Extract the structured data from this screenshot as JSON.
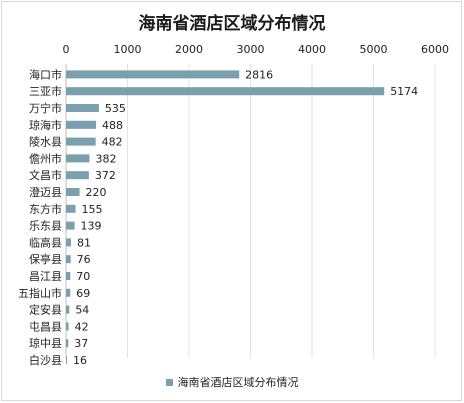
{
  "chart_data": {
    "type": "bar",
    "orientation": "horizontal",
    "title": "海南省酒店区域分布情况",
    "xlim": [
      0,
      6000
    ],
    "ticks": [
      0,
      1000,
      2000,
      3000,
      4000,
      5000,
      6000
    ],
    "x_axis_position": "top",
    "grid": true,
    "legend_placement": "bottom",
    "bar_color": "#7a9fae",
    "categories": [
      "海口市",
      "三亚市",
      "万宁市",
      "琼海市",
      "陵水县",
      "儋州市",
      "文昌市",
      "澄迈县",
      "东方市",
      "乐东县",
      "临高县",
      "保亭县",
      "昌江县",
      "五指山市",
      "定安县",
      "屯昌县",
      "琼中县",
      "白沙县"
    ],
    "series": [
      {
        "name": "海南省酒店区域分布情况",
        "values": [
          2816,
          5174,
          535,
          488,
          482,
          382,
          372,
          220,
          155,
          139,
          81,
          76,
          70,
          69,
          54,
          42,
          37,
          16
        ]
      }
    ]
  }
}
